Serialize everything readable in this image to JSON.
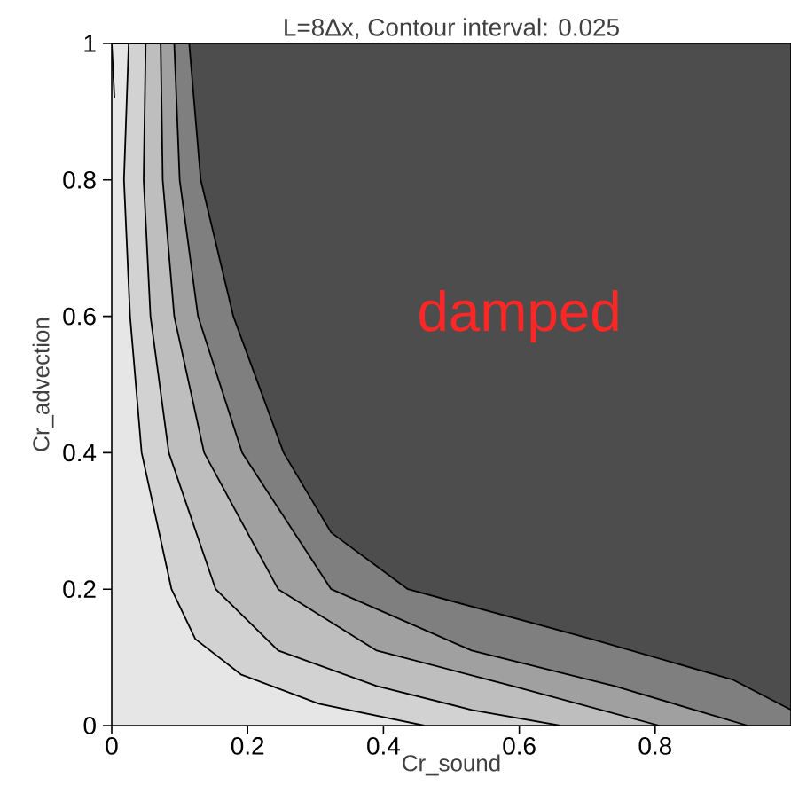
{
  "chart_data": {
    "type": "area",
    "title": "L=8Δx, Contour interval: 0.025",
    "xlabel": "Cr_sound",
    "ylabel": "Cr_advection",
    "xlim": [
      0,
      1
    ],
    "ylim": [
      0,
      1
    ],
    "xticks": [
      0,
      0.2,
      0.4,
      0.6,
      0.8
    ],
    "yticks": [
      0,
      0.2,
      0.4,
      0.6,
      0.8,
      1
    ],
    "annotations": [
      "damped"
    ],
    "series": [
      {
        "color": "#7f7f7f",
        "x": [
          0,
          0.114,
          0.131,
          0.179,
          0.253,
          0.323,
          0.436,
          0.706,
          0.915,
          1.0
        ],
        "values": [
          1,
          1,
          0.8,
          0.6,
          0.4,
          0.283,
          0.2,
          0.127,
          0.067,
          0.023
        ]
      },
      {
        "color": "#a0a0a0",
        "x": [
          0,
          0.092,
          0.1,
          0.127,
          0.192,
          0.323,
          0.53,
          0.74,
          0.936
        ],
        "values": [
          1,
          1,
          0.8,
          0.6,
          0.4,
          0.2,
          0.11,
          0.058,
          0
        ]
      },
      {
        "color": "#bebebe",
        "x": [
          0,
          0.072,
          0.075,
          0.092,
          0.136,
          0.245,
          0.39,
          0.59,
          0.806
        ],
        "values": [
          1,
          1,
          0.8,
          0.6,
          0.4,
          0.2,
          0.11,
          0.058,
          0
        ]
      },
      {
        "color": "#d2d2d2",
        "x": [
          0,
          0.05,
          0.047,
          0.057,
          0.084,
          0.153,
          0.245,
          0.39,
          0.53,
          0.66
        ],
        "values": [
          1,
          1,
          0.8,
          0.6,
          0.4,
          0.2,
          0.11,
          0.058,
          0.023,
          0
        ]
      },
      {
        "color": "#e6e6e6",
        "x": [
          0,
          0.025,
          0.018,
          0.027,
          0.044,
          0.088,
          0.123,
          0.19,
          0.305,
          0.46
        ],
        "values": [
          1,
          1,
          0.8,
          0.6,
          0.4,
          0.2,
          0.127,
          0.075,
          0.032,
          0
        ]
      },
      {
        "type": "line",
        "color": "#000000",
        "x": [
          0.0,
          0.002,
          0.004
        ],
        "values": [
          1,
          0.96,
          0.92
        ]
      }
    ]
  }
}
